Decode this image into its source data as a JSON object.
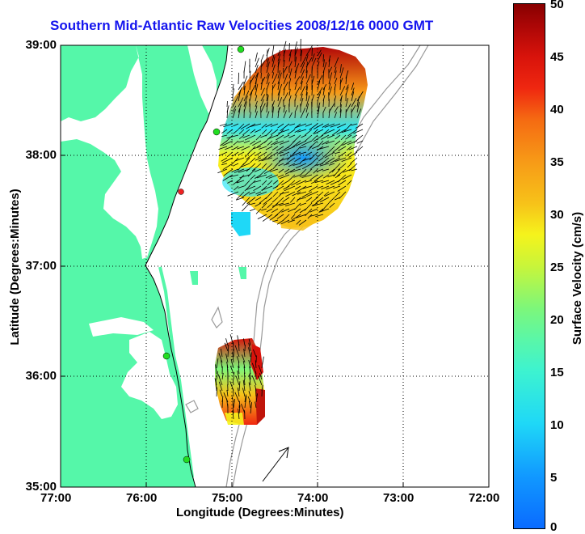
{
  "title": "Southern Mid-Atlantic Raw Velocities 2008/12/16 0000 GMT",
  "xlabel": "Longitude (Degrees:Minutes)",
  "ylabel": "Latitude (Degrees:Minutes)",
  "colorbar_label": "Surface Velocity (cm/s)",
  "x_ticks": [
    "77:00",
    "76:00",
    "75:00",
    "74:00",
    "73:00",
    "72:00"
  ],
  "y_ticks": [
    "39:00",
    "38:00",
    "37:00",
    "36:00",
    "35:00"
  ],
  "colorbar_ticks": [
    "50",
    "45",
    "40",
    "35",
    "30",
    "25",
    "20",
    "15",
    "10",
    "5",
    "0"
  ],
  "colors": {
    "land": "#55f7a9",
    "title": "#1515ee",
    "station": "#22dd22",
    "station_inactive": "#ee2222"
  },
  "chart_data": {
    "type": "map",
    "title": "Southern Mid-Atlantic Raw Velocities 2008/12/16 0000 GMT",
    "xlim_deg": [
      -77,
      -72
    ],
    "ylim_deg": [
      35,
      39
    ],
    "colorbar_range_cm_s": [
      0,
      50
    ],
    "grid": true
  }
}
